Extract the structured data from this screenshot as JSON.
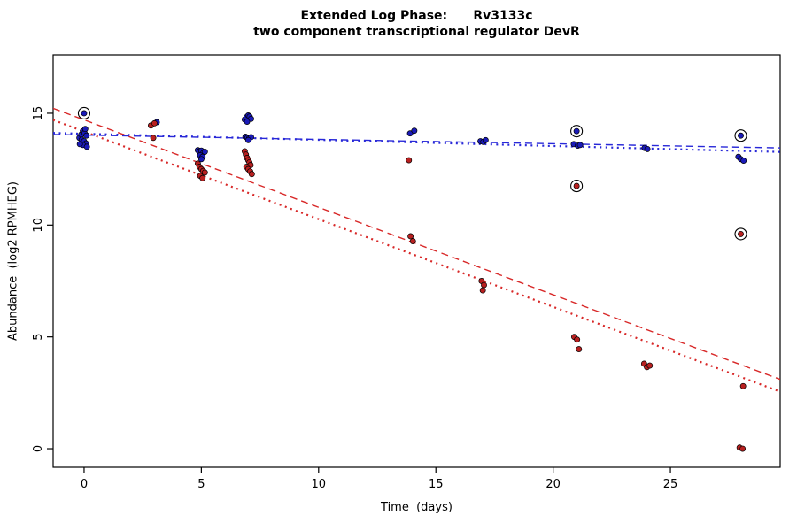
{
  "chart_data": {
    "type": "scatter",
    "title_line1": "Extended Log Phase:      Rv3133c",
    "title_line2": "two component transcriptional regulator DevR",
    "xlabel": "Time  (days)",
    "ylabel": "Abundance  (log2 RPMHEG)",
    "axes": {
      "xlim": [
        -1.32,
        29.68
      ],
      "ylim": [
        -0.83,
        17.61
      ],
      "x_ticks": [
        0,
        5,
        10,
        15,
        20,
        25
      ],
      "y_ticks": [
        0,
        5,
        10,
        15
      ],
      "grid": false
    },
    "series": [
      {
        "name": "blue",
        "color": "#1a1ab8",
        "points": [
          [
            -0.2,
            13.9
          ],
          [
            -0.12,
            14.05
          ],
          [
            -0.05,
            14.2
          ],
          [
            0.02,
            14.12
          ],
          [
            0.1,
            14.0
          ],
          [
            -0.1,
            13.82
          ],
          [
            0.0,
            13.75
          ],
          [
            0.08,
            13.65
          ],
          [
            -0.05,
            13.58
          ],
          [
            0.12,
            13.5
          ],
          [
            0.05,
            14.3
          ],
          [
            -0.18,
            13.62
          ],
          [
            0.0,
            15.0,
            1
          ],
          [
            3.1,
            14.6
          ],
          [
            4.85,
            13.35
          ],
          [
            4.92,
            13.3
          ],
          [
            5.0,
            13.33
          ],
          [
            5.08,
            13.22
          ],
          [
            5.15,
            13.28
          ],
          [
            4.95,
            13.12
          ],
          [
            5.05,
            13.05
          ],
          [
            5.0,
            12.95
          ],
          [
            6.85,
            14.72
          ],
          [
            6.92,
            14.82
          ],
          [
            7.0,
            14.9
          ],
          [
            7.06,
            14.85
          ],
          [
            7.12,
            14.75
          ],
          [
            6.95,
            14.62
          ],
          [
            6.88,
            13.95
          ],
          [
            6.96,
            13.9
          ],
          [
            7.04,
            13.88
          ],
          [
            7.12,
            13.93
          ],
          [
            7.0,
            13.8
          ],
          [
            13.9,
            14.1
          ],
          [
            14.08,
            14.22
          ],
          [
            16.9,
            13.75
          ],
          [
            17.02,
            13.72
          ],
          [
            17.12,
            13.8
          ],
          [
            20.88,
            13.62
          ],
          [
            21.05,
            13.55
          ],
          [
            21.15,
            13.58
          ],
          [
            21.0,
            14.2,
            1
          ],
          [
            23.9,
            13.45
          ],
          [
            24.02,
            13.4
          ],
          [
            27.9,
            13.05
          ],
          [
            28.0,
            12.95
          ],
          [
            28.12,
            12.88
          ],
          [
            28.0,
            14.0,
            1
          ]
        ]
      },
      {
        "name": "red",
        "color": "#b82020",
        "points": [
          [
            2.85,
            14.45
          ],
          [
            3.0,
            14.55
          ],
          [
            2.95,
            13.9
          ],
          [
            4.85,
            12.75
          ],
          [
            4.92,
            12.6
          ],
          [
            5.0,
            12.5
          ],
          [
            5.08,
            12.42
          ],
          [
            5.15,
            12.35
          ],
          [
            4.95,
            12.2
          ],
          [
            5.05,
            12.1
          ],
          [
            6.85,
            13.3
          ],
          [
            6.9,
            13.15
          ],
          [
            6.95,
            13.0
          ],
          [
            7.0,
            12.9
          ],
          [
            7.05,
            12.8
          ],
          [
            7.1,
            12.68
          ],
          [
            6.92,
            12.6
          ],
          [
            7.0,
            12.5
          ],
          [
            7.08,
            12.4
          ],
          [
            7.15,
            12.28
          ],
          [
            13.85,
            12.9
          ],
          [
            13.92,
            9.5
          ],
          [
            14.02,
            9.28
          ],
          [
            16.95,
            7.5
          ],
          [
            17.05,
            7.32
          ],
          [
            17.0,
            7.08
          ],
          [
            21.0,
            11.75,
            1
          ],
          [
            20.9,
            5.0
          ],
          [
            21.02,
            4.88
          ],
          [
            21.1,
            4.45
          ],
          [
            23.88,
            3.8
          ],
          [
            24.0,
            3.65
          ],
          [
            24.12,
            3.72
          ],
          [
            28.0,
            9.6,
            1
          ],
          [
            28.1,
            2.8
          ],
          [
            27.95,
            0.05
          ],
          [
            28.08,
            0.0
          ]
        ]
      }
    ],
    "lines": [
      {
        "series": "blue",
        "style": "dashed",
        "x": [
          -1.32,
          29.68
        ],
        "y": [
          14.05,
          13.45
        ],
        "color": "#2828d8",
        "width": 1.4
      },
      {
        "series": "blue",
        "style": "dotted",
        "x": [
          -1.32,
          29.68
        ],
        "y": [
          14.12,
          13.27
        ],
        "color": "#2828d8",
        "width": 2.2
      },
      {
        "series": "red",
        "style": "dashed",
        "x": [
          -1.32,
          29.68
        ],
        "y": [
          15.22,
          3.1
        ],
        "color": "#d82828",
        "width": 1.4
      },
      {
        "series": "red",
        "style": "dotted",
        "x": [
          -1.32,
          29.68
        ],
        "y": [
          14.7,
          2.55
        ],
        "color": "#d82828",
        "width": 2.2
      }
    ],
    "marker": {
      "point_radius": 3.1,
      "point_stroke": "#000000",
      "outlier_ring_radius": 6.5,
      "outlier_ring_color": "#000000"
    }
  }
}
